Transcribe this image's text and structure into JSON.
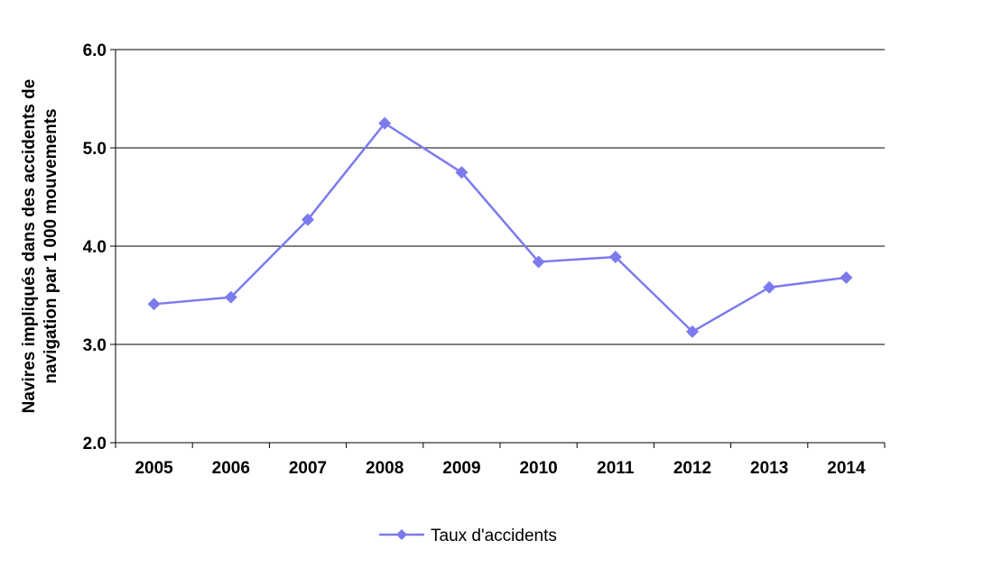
{
  "chart_data": {
    "type": "line",
    "categories": [
      "2005",
      "2006",
      "2007",
      "2008",
      "2009",
      "2010",
      "2011",
      "2012",
      "2013",
      "2014"
    ],
    "series": [
      {
        "name": "Taux d'accidents",
        "values": [
          3.41,
          3.48,
          4.27,
          5.25,
          4.75,
          3.84,
          3.89,
          3.13,
          3.58,
          3.68
        ],
        "color": "#7B7BEF",
        "marker": "diamond"
      }
    ],
    "ylabel_lines": [
      "Navires impliqués dans des accidents de",
      "navigation par 1 000 mouvements"
    ],
    "ylim": [
      2.0,
      6.0
    ],
    "yticks": [
      "2.0",
      "3.0",
      "4.0",
      "5.0",
      "6.0"
    ],
    "grid": "horizontal",
    "legend_position": "bottom"
  }
}
